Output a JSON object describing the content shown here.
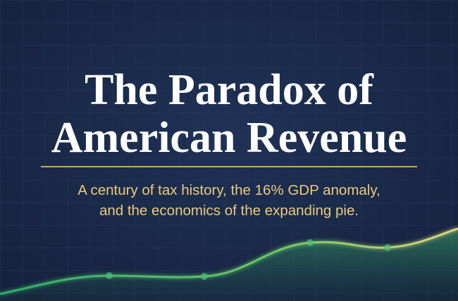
{
  "header": {
    "title_lines": [
      "The Paradox of",
      "American Revenue"
    ],
    "subtitle_lines": [
      "A century of tax history, the 16% GDP anomaly,",
      "and the economics of the expanding pie."
    ]
  }
}
